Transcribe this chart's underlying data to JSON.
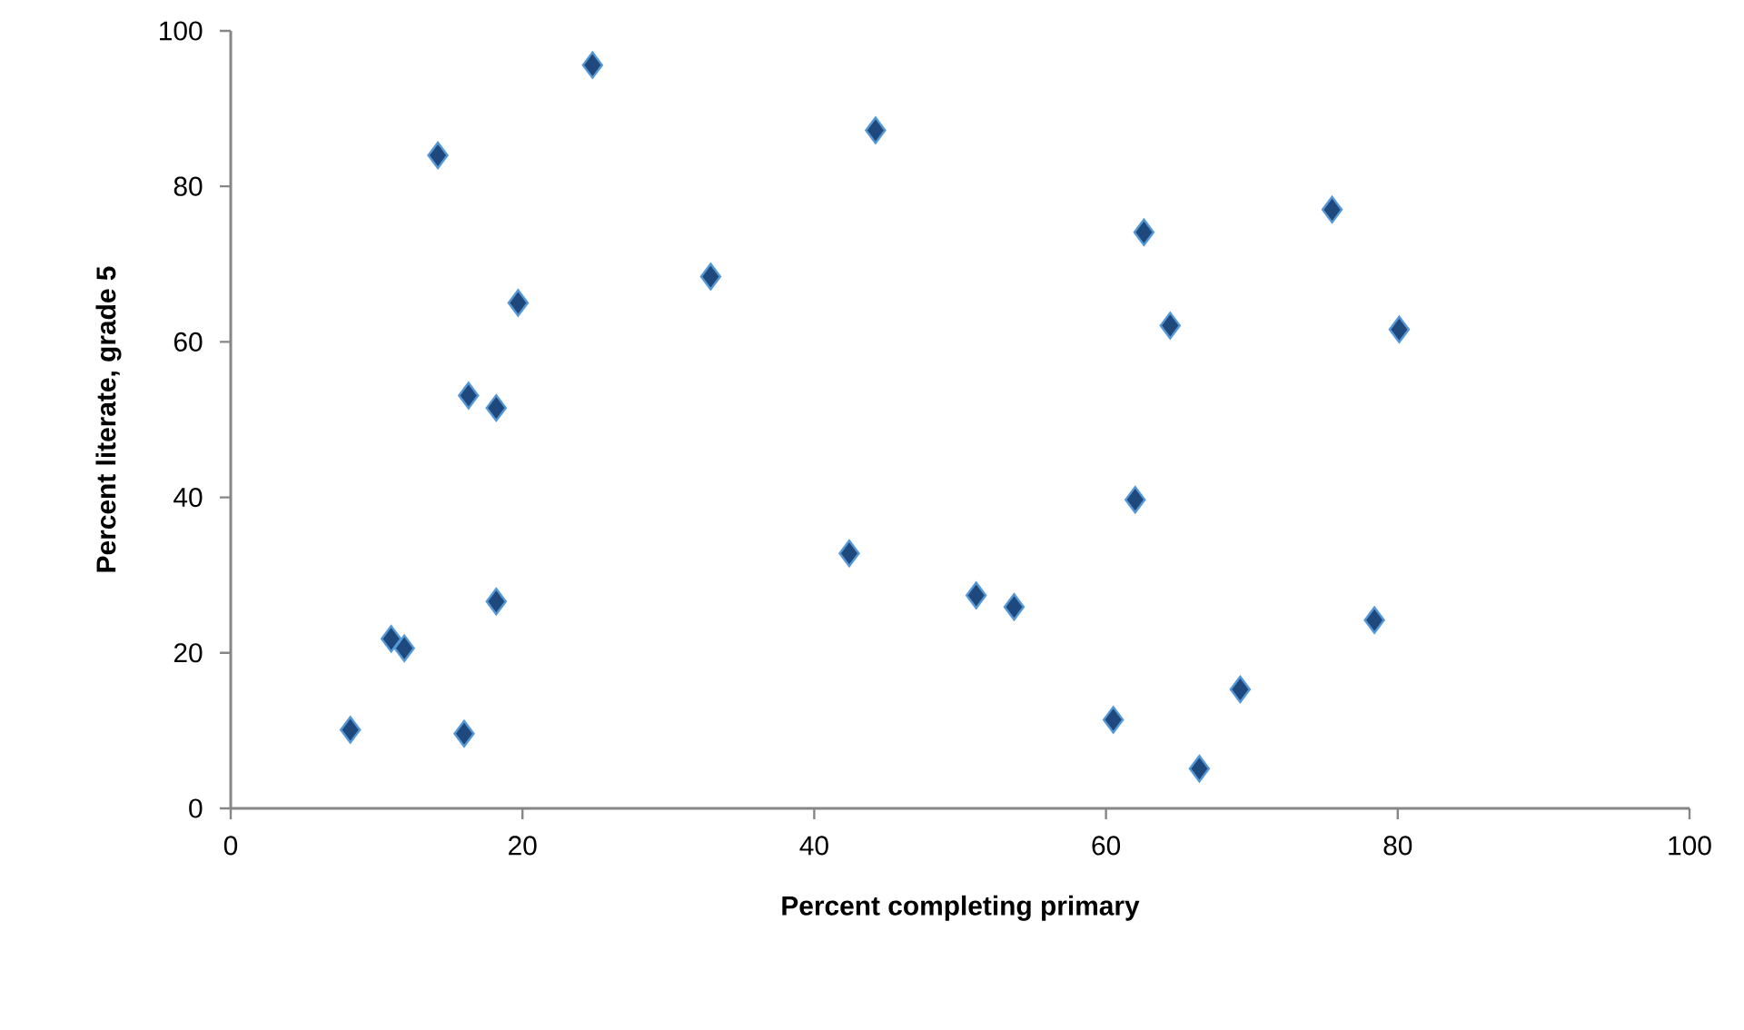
{
  "chart_data": {
    "type": "scatter",
    "xlabel": "Percent completing primary",
    "ylabel": "Percent literate, grade 5",
    "x": [
      24.8,
      14.2,
      44.2,
      32.9,
      19.7,
      16.3,
      18.2,
      42.4,
      51.1,
      18.2,
      11.0,
      11.9,
      8.2,
      16.0,
      62.6,
      75.5,
      64.4,
      80.1,
      62.0,
      53.7,
      78.4,
      69.2,
      60.5,
      66.4
    ],
    "values": [
      95.6,
      84.0,
      87.2,
      68.4,
      65.0,
      53.1,
      51.5,
      32.8,
      27.4,
      26.6,
      21.8,
      20.6,
      10.1,
      9.6,
      74.1,
      77.0,
      62.1,
      61.6,
      39.7,
      25.9,
      24.2,
      15.3,
      11.4,
      5.1
    ],
    "color": "#1f497d",
    "marker": "diamond",
    "xlim": [
      0,
      100
    ],
    "ylim": [
      0,
      100
    ],
    "xticks": [
      0,
      20,
      40,
      60,
      80,
      100
    ],
    "yticks": [
      0,
      20,
      40,
      60,
      80,
      100
    ]
  }
}
